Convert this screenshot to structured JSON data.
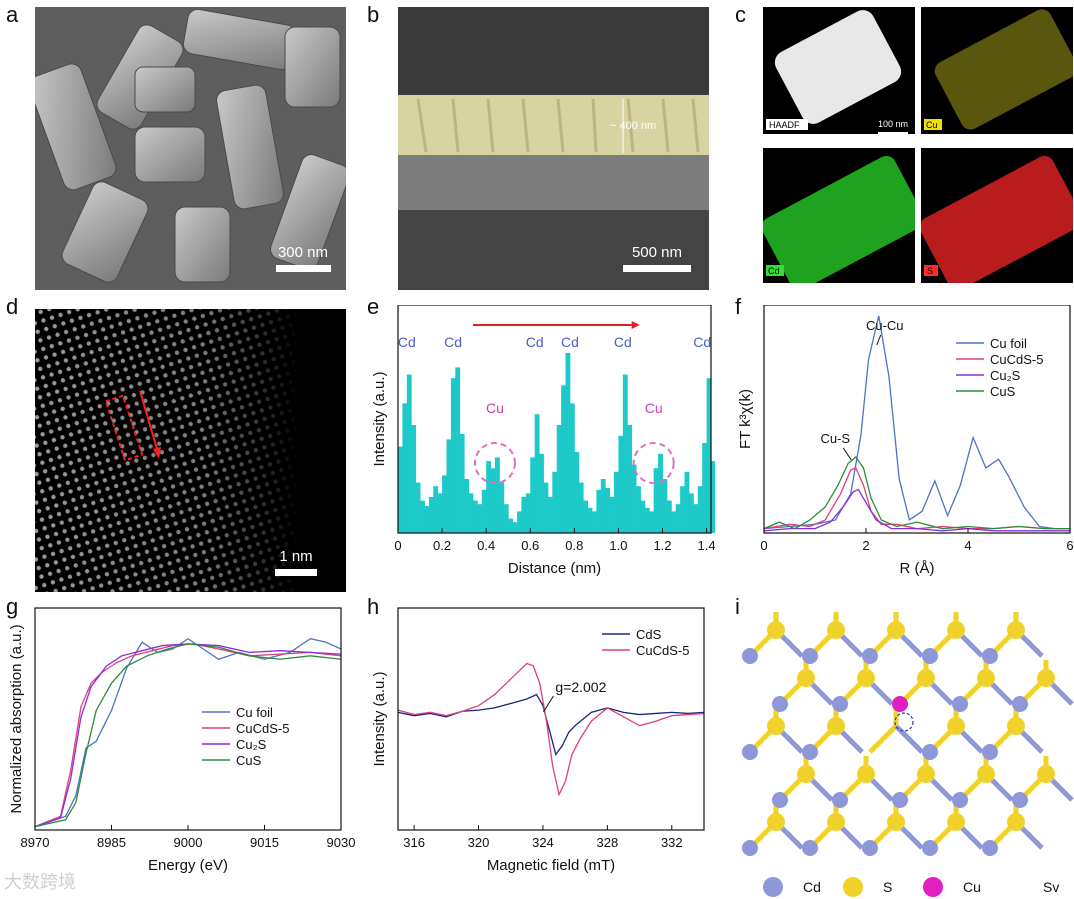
{
  "panels": {
    "a": {
      "label": "a",
      "scalebar": "300 nm"
    },
    "b": {
      "label": "b",
      "scalebar": "500 nm",
      "thickness": "~ 400 nm"
    },
    "c": {
      "label": "c",
      "scalebar": "100 nm",
      "maps": [
        "HAADF",
        "Cu",
        "Cd",
        "S"
      ]
    },
    "d": {
      "label": "d",
      "scalebar": "1 nm"
    },
    "e": {
      "label": "e"
    },
    "f": {
      "label": "f"
    },
    "g": {
      "label": "g"
    },
    "h": {
      "label": "h"
    },
    "i": {
      "label": "i"
    }
  },
  "watermark": "大数跨境",
  "colors": {
    "cd": "#8e97d8",
    "s": "#f0d22a",
    "cu": "#e020c0",
    "cyan": "#1dc9c9"
  },
  "chart_data": [
    {
      "id": "e",
      "type": "bar",
      "xlabel": "Distance (nm)",
      "ylabel": "Intensity (a.u.)",
      "xlim": [
        0,
        1.42
      ],
      "ylim": [
        0,
        1
      ],
      "xticks": [
        "0",
        "0.2",
        "0.4",
        "0.6",
        "0.8",
        "1.0",
        "1.2",
        "1.4"
      ],
      "peak_labels": [
        {
          "text": "Cd",
          "x": 0.04
        },
        {
          "text": "Cd",
          "x": 0.25
        },
        {
          "text": "Cd",
          "x": 0.62
        },
        {
          "text": "Cd",
          "x": 0.78
        },
        {
          "text": "Cd",
          "x": 1.02
        },
        {
          "text": "Cd",
          "x": 1.38
        }
      ],
      "cu_labels": [
        {
          "text": "Cu",
          "x": 0.44
        },
        {
          "text": "Cu",
          "x": 1.16
        }
      ],
      "x": [
        0.0,
        0.02,
        0.04,
        0.06,
        0.08,
        0.1,
        0.12,
        0.14,
        0.16,
        0.18,
        0.2,
        0.22,
        0.24,
        0.26,
        0.28,
        0.3,
        0.32,
        0.34,
        0.36,
        0.38,
        0.4,
        0.42,
        0.44,
        0.46,
        0.48,
        0.5,
        0.52,
        0.54,
        0.56,
        0.58,
        0.6,
        0.62,
        0.64,
        0.66,
        0.68,
        0.7,
        0.72,
        0.74,
        0.76,
        0.78,
        0.8,
        0.82,
        0.84,
        0.86,
        0.88,
        0.9,
        0.92,
        0.94,
        0.96,
        0.98,
        1.0,
        1.02,
        1.04,
        1.06,
        1.08,
        1.1,
        1.12,
        1.14,
        1.16,
        1.18,
        1.2,
        1.22,
        1.24,
        1.26,
        1.28,
        1.3,
        1.32,
        1.34,
        1.36,
        1.38,
        1.4,
        1.42
      ],
      "values": [
        0.48,
        0.72,
        0.88,
        0.6,
        0.28,
        0.18,
        0.15,
        0.2,
        0.26,
        0.22,
        0.32,
        0.52,
        0.86,
        0.92,
        0.55,
        0.3,
        0.22,
        0.18,
        0.16,
        0.24,
        0.4,
        0.36,
        0.42,
        0.28,
        0.16,
        0.08,
        0.06,
        0.12,
        0.2,
        0.22,
        0.42,
        0.66,
        0.44,
        0.28,
        0.2,
        0.34,
        0.6,
        0.82,
        1.0,
        0.72,
        0.45,
        0.28,
        0.18,
        0.14,
        0.12,
        0.24,
        0.3,
        0.25,
        0.2,
        0.34,
        0.54,
        0.88,
        0.6,
        0.38,
        0.26,
        0.18,
        0.14,
        0.12,
        0.36,
        0.44,
        0.3,
        0.18,
        0.12,
        0.16,
        0.26,
        0.34,
        0.22,
        0.16,
        0.26,
        0.5,
        0.86,
        0.4
      ]
    },
    {
      "id": "f",
      "type": "line",
      "xlabel": "R (Å)",
      "ylabel": "FT k³χ(k)",
      "xlim": [
        0,
        6
      ],
      "xticks": [
        "0",
        "2",
        "4",
        "6"
      ],
      "ylim": [
        0,
        1.05
      ],
      "annotations": [
        {
          "text": "Cu-Cu",
          "x": 2.25
        },
        {
          "text": "Cu-S",
          "x": 1.75
        }
      ],
      "series": [
        {
          "name": "Cu foil",
          "color": "#4e73c4",
          "x": [
            0,
            0.5,
            1.0,
            1.4,
            1.7,
            1.9,
            2.05,
            2.25,
            2.45,
            2.65,
            2.85,
            3.1,
            3.35,
            3.6,
            3.85,
            4.1,
            4.35,
            4.6,
            4.8,
            5.1,
            5.4,
            5.7,
            6.0
          ],
          "y": [
            0.02,
            0.03,
            0.04,
            0.06,
            0.18,
            0.45,
            0.8,
            1.0,
            0.72,
            0.25,
            0.06,
            0.1,
            0.24,
            0.08,
            0.22,
            0.44,
            0.3,
            0.34,
            0.26,
            0.12,
            0.03,
            0.02,
            0.02
          ]
        },
        {
          "name": "CuCdS-5",
          "color": "#e0407a",
          "x": [
            0,
            0.5,
            0.9,
            1.2,
            1.5,
            1.7,
            1.8,
            1.95,
            2.1,
            2.3,
            2.6,
            3.0,
            3.5,
            4.0,
            4.5,
            5.0,
            5.5,
            6.0
          ],
          "y": [
            0.02,
            0.04,
            0.03,
            0.06,
            0.18,
            0.29,
            0.3,
            0.22,
            0.1,
            0.04,
            0.04,
            0.02,
            0.03,
            0.02,
            0.02,
            0.03,
            0.02,
            0.02
          ]
        },
        {
          "name": "Cu₂S",
          "color": "#8a2be2",
          "x": [
            0,
            0.5,
            1.0,
            1.3,
            1.55,
            1.75,
            1.85,
            2.0,
            2.2,
            2.5,
            3.0,
            3.5,
            4.0,
            4.5,
            5.0,
            5.5,
            6.0
          ],
          "y": [
            0.01,
            0.02,
            0.02,
            0.05,
            0.12,
            0.19,
            0.2,
            0.14,
            0.06,
            0.02,
            0.02,
            0.01,
            0.02,
            0.01,
            0.01,
            0.01,
            0.01
          ]
        },
        {
          "name": "CuS",
          "color": "#2e8b3a",
          "x": [
            0,
            0.3,
            0.6,
            0.9,
            1.2,
            1.45,
            1.65,
            1.8,
            1.95,
            2.1,
            2.3,
            2.6,
            3.0,
            3.5,
            4.0,
            4.5,
            5.0,
            5.5,
            6.0
          ],
          "y": [
            0.02,
            0.05,
            0.02,
            0.06,
            0.12,
            0.22,
            0.32,
            0.35,
            0.3,
            0.16,
            0.06,
            0.03,
            0.05,
            0.02,
            0.03,
            0.02,
            0.03,
            0.02,
            0.02
          ]
        }
      ]
    },
    {
      "id": "g",
      "type": "line",
      "xlabel": "Energy (eV)",
      "ylabel": "Normalized absorption (a.u.)",
      "xlim": [
        8970,
        9030
      ],
      "ylim": [
        0,
        1.3
      ],
      "xticks": [
        "8970",
        "8985",
        "9000",
        "9015",
        "9030"
      ],
      "series": [
        {
          "name": "Cu foil",
          "color": "#4e73c4",
          "x": [
            8970,
            8976,
            8978,
            8980,
            8982,
            8985,
            8988,
            8991,
            8994,
            8997,
            9000,
            9003,
            9006,
            9010,
            9015,
            9020,
            9024,
            9027,
            9030
          ],
          "y": [
            0.02,
            0.08,
            0.2,
            0.48,
            0.52,
            0.7,
            0.95,
            1.1,
            1.04,
            1.06,
            1.12,
            1.06,
            1.0,
            1.04,
            1.0,
            1.04,
            1.12,
            1.1,
            1.06
          ]
        },
        {
          "name": "CuCdS-5",
          "color": "#e0407a",
          "x": [
            8970,
            8975,
            8977,
            8979,
            8981,
            8983,
            8986,
            8989,
            8993,
            8997,
            9001,
            9006,
            9012,
            9018,
            9024,
            9030
          ],
          "y": [
            0.02,
            0.08,
            0.35,
            0.72,
            0.86,
            0.92,
            0.98,
            1.02,
            1.05,
            1.08,
            1.09,
            1.06,
            1.02,
            1.03,
            1.04,
            1.02
          ]
        },
        {
          "name": "Cu₂S",
          "color": "#8a2be2",
          "x": [
            8970,
            8975,
            8977,
            8979,
            8981,
            8984,
            8987,
            8991,
            8995,
            9000,
            9006,
            9012,
            9018,
            9024,
            9030
          ],
          "y": [
            0.02,
            0.07,
            0.3,
            0.66,
            0.84,
            0.96,
            1.02,
            1.05,
            1.08,
            1.09,
            1.08,
            1.04,
            1.05,
            1.04,
            1.03
          ]
        },
        {
          "name": "CuS",
          "color": "#2e8b3a",
          "x": [
            8970,
            8976,
            8978,
            8980,
            8982,
            8985,
            8988,
            8992,
            8996,
            9000,
            9006,
            9012,
            9018,
            9024,
            9030
          ],
          "y": [
            0.02,
            0.06,
            0.16,
            0.45,
            0.7,
            0.86,
            0.96,
            1.02,
            1.06,
            1.09,
            1.07,
            1.02,
            1.0,
            1.02,
            1.0
          ]
        }
      ]
    },
    {
      "id": "h",
      "type": "line",
      "xlabel": "Magnetic field (mT)",
      "ylabel": "Intensity (a.u.)",
      "xlim": [
        315,
        334
      ],
      "ylim": [
        -1,
        1
      ],
      "xticks": [
        "316",
        "320",
        "324",
        "328",
        "332"
      ],
      "annotations": [
        {
          "text": "g=2.002",
          "x": 324.4
        }
      ],
      "series": [
        {
          "name": "CdS",
          "color": "#1a237e",
          "x": [
            315,
            316,
            317,
            318,
            319,
            320,
            321,
            322,
            323,
            323.6,
            324,
            324.4,
            324.8,
            325.2,
            325.6,
            326,
            326.5,
            327,
            328,
            329,
            330,
            331,
            332,
            333,
            334
          ],
          "y": [
            0.06,
            0.03,
            0.05,
            0.02,
            0.07,
            0.08,
            0.1,
            0.14,
            0.18,
            0.22,
            0.12,
            -0.1,
            -0.32,
            -0.24,
            -0.12,
            -0.06,
            0.0,
            0.06,
            0.1,
            0.06,
            0.04,
            0.05,
            0.06,
            0.05,
            0.06
          ]
        },
        {
          "name": "CuCdS-5",
          "color": "#e0407a",
          "x": [
            315,
            316,
            317,
            318,
            319,
            320,
            321,
            322,
            323,
            323.4,
            323.8,
            324.2,
            324.6,
            325,
            325.4,
            325.8,
            326.3,
            327,
            328,
            329,
            330,
            331,
            332,
            333,
            334
          ],
          "y": [
            0.08,
            0.04,
            0.06,
            0.03,
            0.07,
            0.12,
            0.22,
            0.36,
            0.5,
            0.48,
            0.32,
            0.0,
            -0.42,
            -0.68,
            -0.56,
            -0.32,
            -0.18,
            -0.02,
            0.1,
            0.02,
            -0.06,
            -0.02,
            0.03,
            0.04,
            0.05
          ]
        }
      ]
    }
  ],
  "legend_i": [
    {
      "label": "Cd",
      "kind": "cd"
    },
    {
      "label": "S",
      "kind": "s"
    },
    {
      "label": "Cu",
      "kind": "cu"
    },
    {
      "label": "Sv",
      "kind": "sv"
    }
  ]
}
